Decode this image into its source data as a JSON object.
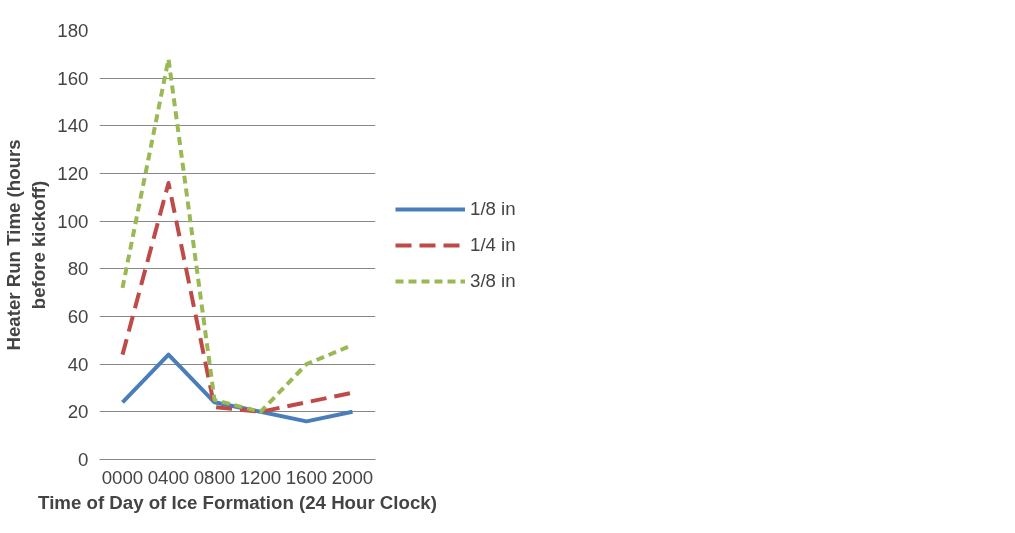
{
  "chart_data": {
    "type": "line",
    "xlabel": "Time of Day of Ice Formation (24 Hour Clock)",
    "ylabel": "Heater Run Time (hours before kickoff)",
    "categories": [
      "0000",
      "0400",
      "0800",
      "1200",
      "1600",
      "2000"
    ],
    "ylim": [
      0,
      180
    ],
    "yticks": [
      0,
      20,
      40,
      60,
      80,
      100,
      120,
      140,
      160,
      180
    ],
    "grid": "y",
    "legend": "right",
    "marker": "none",
    "series": [
      {
        "name": "1/8 in",
        "color": "#4a7ebb",
        "line_style": "solid",
        "values": [
          24,
          44,
          24,
          20,
          16,
          20
        ]
      },
      {
        "name": "1/4 in",
        "color": "#be4b48",
        "line_style": "dashed",
        "values": [
          44,
          116,
          22,
          20,
          24,
          28
        ]
      },
      {
        "name": "3/8 in",
        "color": "#98b954",
        "line_style": "dotted",
        "values": [
          72,
          168,
          25,
          20,
          40,
          48
        ]
      }
    ]
  }
}
